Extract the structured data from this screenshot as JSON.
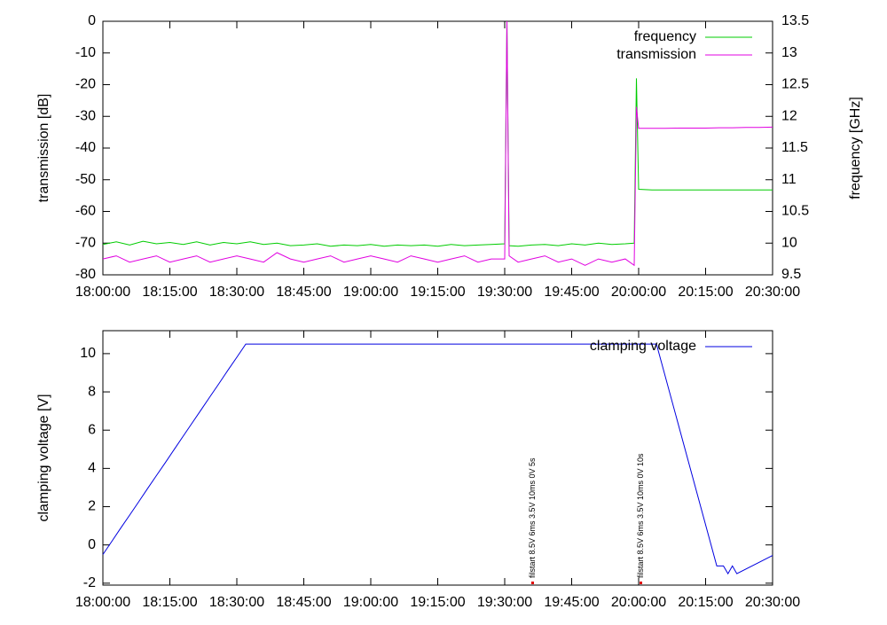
{
  "chart_data": [
    {
      "type": "line",
      "y_label": "transmission [dB]",
      "y2_label": "frequency [GHz]",
      "x": [
        "18:00:00",
        "18:03:00",
        "18:06:00",
        "18:09:00",
        "18:12:00",
        "18:15:00",
        "18:18:00",
        "18:21:00",
        "18:24:00",
        "18:27:00",
        "18:30:00",
        "18:33:00",
        "18:36:00",
        "18:39:00",
        "18:42:00",
        "18:45:00",
        "18:48:00",
        "18:51:00",
        "18:54:00",
        "18:57:00",
        "19:00:00",
        "19:03:00",
        "19:06:00",
        "19:09:00",
        "19:12:00",
        "19:15:00",
        "19:18:00",
        "19:21:00",
        "19:24:00",
        "19:27:00",
        "19:30:00",
        "19:30:30",
        "19:31:00",
        "19:33:00",
        "19:36:00",
        "19:39:00",
        "19:42:00",
        "19:45:00",
        "19:48:00",
        "19:51:00",
        "19:54:00",
        "19:57:00",
        "19:59:00",
        "19:59:30",
        "20:00:00",
        "20:03:00",
        "20:06:00",
        "20:09:00",
        "20:12:00",
        "20:15:00",
        "20:18:00",
        "20:21:00",
        "20:24:00",
        "20:27:00",
        "20:30:00"
      ],
      "series": [
        {
          "name": "frequency",
          "color": "#00cc00",
          "axis": "y2",
          "values": [
            9.98,
            10.02,
            9.97,
            10.03,
            9.99,
            10.01,
            9.98,
            10.02,
            9.97,
            10.01,
            9.99,
            10.02,
            9.98,
            10.0,
            9.96,
            9.97,
            9.99,
            9.95,
            9.97,
            9.96,
            9.98,
            9.95,
            9.97,
            9.96,
            9.97,
            9.95,
            9.98,
            9.96,
            9.97,
            9.98,
            9.99,
            13.5,
            9.96,
            9.95,
            9.97,
            9.98,
            9.96,
            9.99,
            9.97,
            10.0,
            9.98,
            9.99,
            10.0,
            12.6,
            10.85,
            10.84,
            10.84,
            10.84,
            10.84,
            10.84,
            10.84,
            10.84,
            10.84,
            10.84,
            10.84
          ]
        },
        {
          "name": "transmission",
          "color": "#e000e0",
          "values": [
            -75,
            -74,
            -76,
            -75,
            -74,
            -76,
            -75,
            -74,
            -76,
            -75,
            -74,
            -75,
            -76,
            -73,
            -75,
            -76,
            -75,
            -74,
            -76,
            -75,
            -74,
            -75,
            -76,
            -74,
            -75,
            -76,
            -75,
            -74,
            -76,
            -75,
            -75,
            0,
            -74,
            -76,
            -75,
            -74,
            -76,
            -75,
            -77,
            -75,
            -76,
            -75,
            -77,
            -27,
            -33.8,
            -33.8,
            -33.8,
            -33.7,
            -33.7,
            -33.7,
            -33.6,
            -33.6,
            -33.5,
            -33.5,
            -33.4
          ]
        }
      ],
      "xlim": [
        "18:00:00",
        "20:30:00"
      ],
      "xticks": [
        "18:00:00",
        "18:15:00",
        "18:30:00",
        "18:45:00",
        "19:00:00",
        "19:15:00",
        "19:30:00",
        "19:45:00",
        "20:00:00",
        "20:15:00",
        "20:30:00"
      ],
      "ylim": [
        -80,
        0
      ],
      "yticks": [
        -80,
        -70,
        -60,
        -50,
        -40,
        -30,
        -20,
        -10,
        0
      ],
      "y2lim": [
        9.5,
        13.5
      ],
      "y2ticks": [
        9.5,
        10,
        10.5,
        11,
        11.5,
        12,
        12.5,
        13,
        13.5
      ],
      "legend": "top-right"
    },
    {
      "type": "line",
      "y_label": "clamping voltage [V]",
      "x": [
        "18:00:00",
        "18:02:00",
        "18:04:00",
        "18:06:00",
        "18:08:00",
        "18:10:00",
        "18:12:00",
        "18:14:00",
        "18:16:00",
        "18:18:00",
        "18:20:00",
        "18:22:00",
        "18:24:00",
        "18:26:00",
        "18:28:00",
        "18:30:00",
        "18:32:00",
        "20:04:00",
        "20:17:30",
        "20:19:00",
        "20:20:00",
        "20:21:00",
        "20:22:00",
        "20:30:00"
      ],
      "series": [
        {
          "name": "clamping voltage",
          "color": "#0000e0",
          "values": [
            -0.5,
            0.19,
            0.88,
            1.56,
            2.25,
            2.94,
            3.63,
            4.31,
            5.0,
            5.69,
            6.38,
            7.06,
            7.75,
            8.44,
            9.13,
            9.81,
            10.5,
            10.5,
            -1.1,
            -1.1,
            -1.5,
            -1.1,
            -1.5,
            -0.55
          ]
        }
      ],
      "annotations": [
        {
          "text": "filstart 8.5V 6ms 3.5V 10ms 0V 5s",
          "x": "19:36:15"
        },
        {
          "text": "filstart 8.5V 6ms 3.5V 10ms 0V 10s",
          "x": "20:00:30"
        }
      ],
      "xlim": [
        "18:00:00",
        "20:30:00"
      ],
      "xticks": [
        "18:00:00",
        "18:15:00",
        "18:30:00",
        "18:45:00",
        "19:00:00",
        "19:15:00",
        "19:30:00",
        "19:45:00",
        "20:00:00",
        "20:15:00",
        "20:30:00"
      ],
      "ylim": [
        -2.1,
        11.2
      ],
      "yticks": [
        -2,
        0,
        2,
        4,
        6,
        8,
        10
      ],
      "legend": "top-right"
    }
  ]
}
